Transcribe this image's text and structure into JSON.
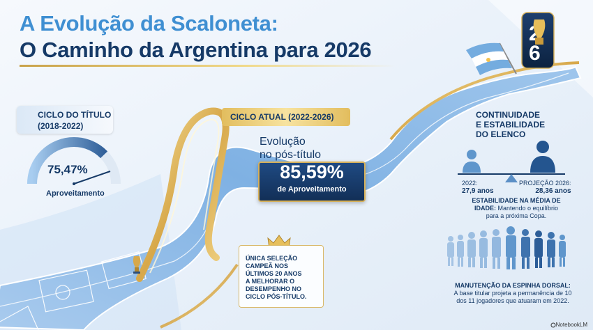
{
  "header": {
    "title_line1": "A Evolução da Scaloneta:",
    "title_line2": "O Caminho da Argentina para 2026"
  },
  "badge_2026": {
    "text": "2026"
  },
  "left_cycle": {
    "label_line1": "CICLO DO TÍTULO",
    "label_line2": "(2018-2022)",
    "value": "75,47%",
    "value_caption": "Aproveitamento",
    "gauge_fraction": 0.7547
  },
  "current_cycle": {
    "label": "CICLO ATUAL (2022-2026)",
    "evo_line1": "Evolução",
    "evo_line2": "no pós-título",
    "value": "85,59%",
    "value_caption": "de Aproveitamento"
  },
  "continuity": {
    "title_line1": "CONTINUIDADE",
    "title_line2": "E ESTABILIDADE",
    "title_line3": "DO ELENCO",
    "left_line1": "2022:",
    "left_line2": "27,9 anos",
    "right_line1": "PROJEÇÃO 2026:",
    "right_line2": "28,36 anos",
    "stability_bold1": "ESTABILIDADE NA MÉDIA DE",
    "stability_bold2": "IDADE:",
    "stability_rest2": " Mantendo o equilíbrio",
    "stability_line3": "para a próxima Copa."
  },
  "spine": {
    "title": "MANUTENÇÃO DA ESPINHA DORSAL:",
    "line2": "A base titular projeta a permanência de 10",
    "line3": "dos 11 jogadores que atuaram em 2022."
  },
  "note": {
    "line1": "ÚNICA SELEÇÃO",
    "line2": "CAMPEÃ NOS",
    "line3": "ÚLTIMOS 20 ANOS",
    "line4": "A MELHORAR O",
    "line5": "DESEMPENHO NO",
    "line6": "CICLO PÓS-TÍTULO."
  },
  "footer": {
    "text": "NotebookLM"
  },
  "colors": {
    "navy": "#163a67",
    "sky": "#3f8fd2",
    "gold": "#d7b15a"
  }
}
